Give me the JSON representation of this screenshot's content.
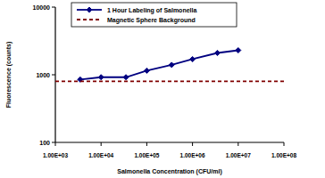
{
  "chart_data": {
    "type": "line",
    "x_label": "Salmonella Concentration (CFU/ml)",
    "y_label": "Fluorescence (counts)",
    "log": true,
    "grid": false,
    "legend": "top-left",
    "xlim": [
      1000,
      100000000
    ],
    "ylim": [
      100,
      10000
    ],
    "xticks": [
      {
        "value": 1000,
        "label": "1.00E+03"
      },
      {
        "value": 10000,
        "label": "1.00E+04"
      },
      {
        "value": 100000,
        "label": "1.00E+05"
      },
      {
        "value": 1000000,
        "label": "1.00E+06"
      },
      {
        "value": 10000000,
        "label": "1.00E+07"
      },
      {
        "value": 100000000,
        "label": "1.00E+08"
      }
    ],
    "yticks": [
      100,
      1000,
      10000
    ],
    "series": [
      {
        "name": "1 Hour Labeling of Salmonella",
        "color": "#000080",
        "marker": "diamond",
        "line_style": "solid",
        "x": [
          3500,
          10000,
          35000,
          100000,
          350000,
          1000000,
          3500000,
          10000000
        ],
        "values": [
          850,
          920,
          920,
          1150,
          1400,
          1700,
          2100,
          2300
        ]
      },
      {
        "name": "Magnetic Sphere Background",
        "color": "#800000",
        "marker": "none",
        "line_style": "dashed",
        "x": [
          1000,
          100000000
        ],
        "values": [
          800,
          800
        ]
      }
    ]
  }
}
